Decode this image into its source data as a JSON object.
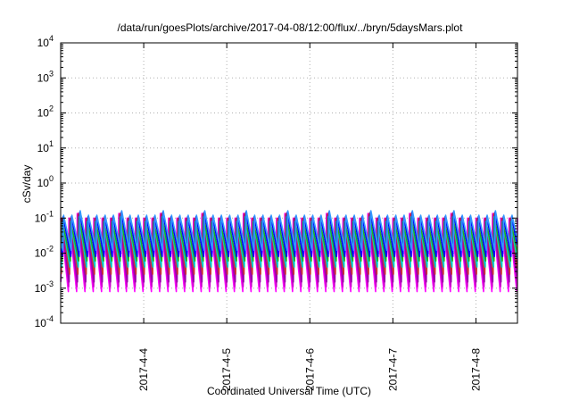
{
  "chart_data": {
    "type": "line",
    "title": "/data/run/goesPlots/archive/2017-04-08/12:00/flux/../bryn/5daysMars.plot",
    "xlabel": "Coordinated Universal Time (UTC)",
    "ylabel": "cSv/day",
    "yscale": "log",
    "ylim": [
      0.0001,
      10000
    ],
    "xlim": [
      "2017-04-03 00:00",
      "2017-04-08 12:00"
    ],
    "grid": true,
    "legend": "none",
    "ytick_labels": [
      {
        "base": "10",
        "exp": "4"
      },
      {
        "base": "10",
        "exp": "3"
      },
      {
        "base": "10",
        "exp": "2"
      },
      {
        "base": "10",
        "exp": "1"
      },
      {
        "base": "10",
        "exp": "0"
      },
      {
        "base": "10",
        "exp": "-1"
      },
      {
        "base": "10",
        "exp": "-2"
      },
      {
        "base": "10",
        "exp": "-3"
      },
      {
        "base": "10",
        "exp": "-4"
      }
    ],
    "xtick_labels": [
      "2017-4-4",
      "2017-4-5",
      "2017-4-6",
      "2017-4-7",
      "2017-4-8"
    ],
    "series": [
      {
        "color": "#ff00ff",
        "peak": 0.1,
        "trough": 0.0008
      },
      {
        "color": "#cc00cc",
        "peak": 0.095,
        "trough": 0.0011
      },
      {
        "color": "#9900aa",
        "peak": 0.09,
        "trough": 0.0015
      },
      {
        "color": "#cc3333",
        "peak": 0.1,
        "trough": 0.0025
      },
      {
        "color": "#00cccc",
        "peak": 0.08,
        "trough": 0.004
      },
      {
        "color": "#22aa22",
        "peak": 0.075,
        "trough": 0.006
      },
      {
        "color": "#0000ff",
        "peak": 0.11,
        "trough": 0.008
      },
      {
        "color": "#3399ff",
        "peak": 0.12,
        "trough": 0.012
      }
    ],
    "cycles_per_day": 10
  }
}
